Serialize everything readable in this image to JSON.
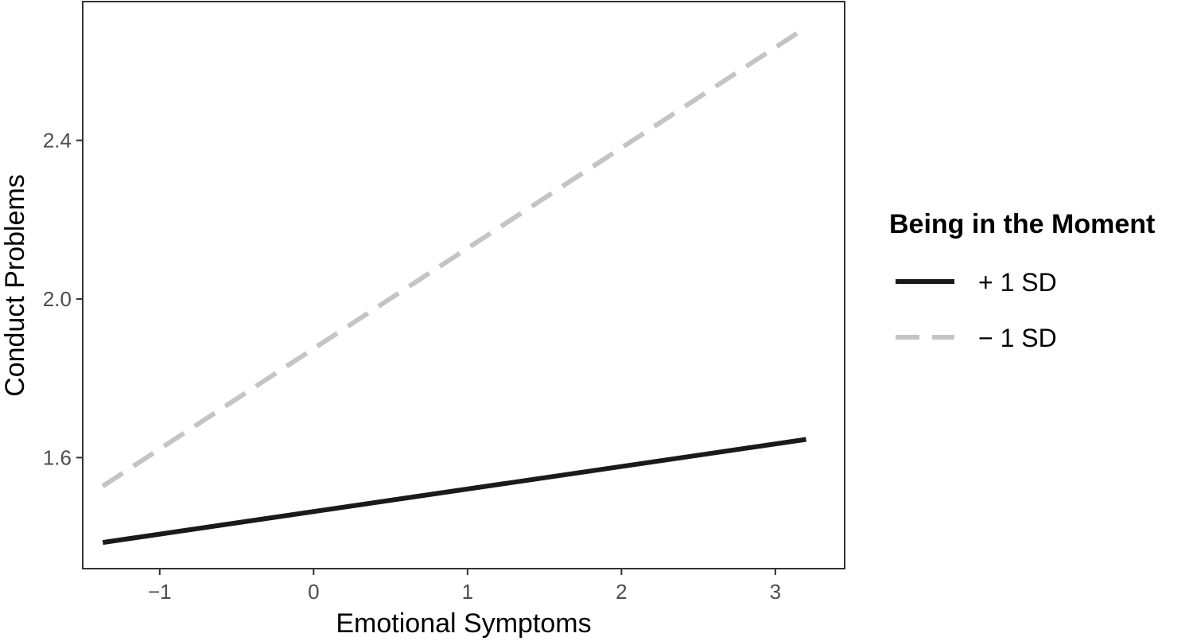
{
  "chart_data": {
    "type": "line",
    "title": "",
    "xlabel": "Emotional Symptoms",
    "ylabel": "Conduct Problems",
    "xlim": [
      -1.5,
      3.45
    ],
    "ylim": [
      1.32,
      2.75
    ],
    "x_ticks": [
      -1,
      0,
      1,
      2,
      3
    ],
    "x_tick_labels": [
      "−1",
      "0",
      "1",
      "2",
      "3"
    ],
    "y_ticks": [
      1.6,
      2.0,
      2.4
    ],
    "y_tick_labels": [
      "1.6",
      "2.0",
      "2.4"
    ],
    "grid": false,
    "legend": {
      "title": "Being in the Moment",
      "placement": "right"
    },
    "series": [
      {
        "name": "+ 1 SD",
        "x": [
          -1.37,
          3.2
        ],
        "y": [
          1.386,
          1.646
        ],
        "color": "#1a1a1a",
        "dash": "solid"
      },
      {
        "name": "− 1 SD",
        "x": [
          -1.37,
          3.2
        ],
        "y": [
          1.528,
          2.685
        ],
        "color": "#c4c4c4",
        "dash": "dashed"
      }
    ]
  }
}
